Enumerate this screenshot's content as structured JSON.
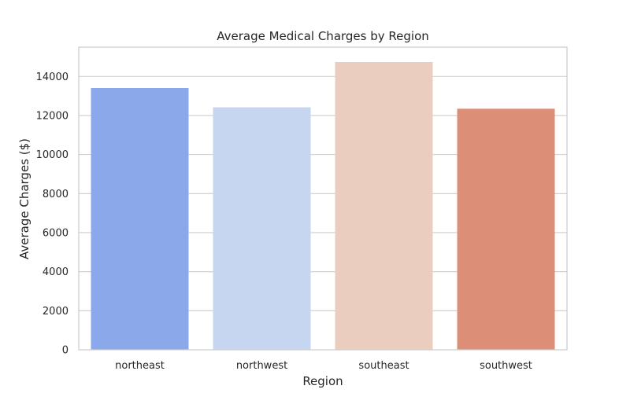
{
  "chart_data": {
    "type": "bar",
    "title": "Average Medical Charges by Region",
    "xlabel": "Region",
    "ylabel": "Average Charges ($)",
    "categories": [
      "northeast",
      "northwest",
      "southeast",
      "southwest"
    ],
    "values": [
      13406,
      12418,
      14735,
      12347
    ],
    "ylim": [
      0,
      15500
    ],
    "yticks": [
      0,
      2000,
      4000,
      6000,
      8000,
      10000,
      12000,
      14000
    ],
    "grid": true,
    "colors": [
      "#8aa8ea",
      "#c6d5f0",
      "#ebcdbf",
      "#dc8e76"
    ]
  }
}
